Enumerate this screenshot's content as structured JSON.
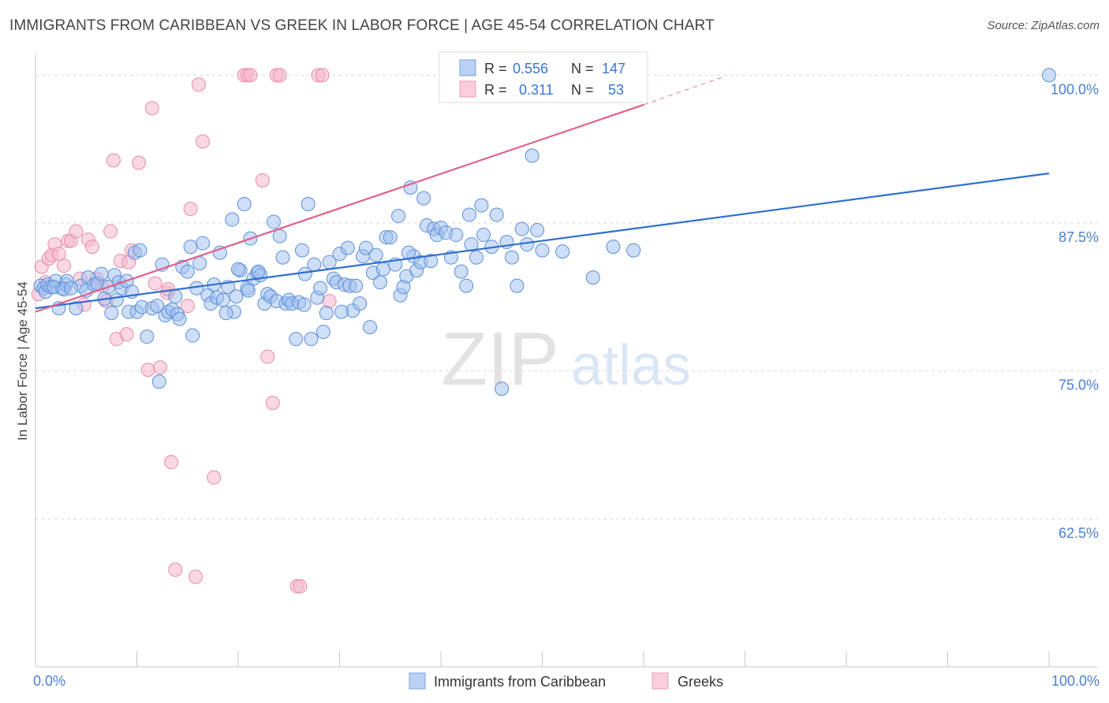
{
  "title": "IMMIGRANTS FROM CARIBBEAN VS GREEK IN LABOR FORCE | AGE 45-54 CORRELATION CHART",
  "source": "Source: ZipAtlas.com",
  "watermark": {
    "zip": "ZIP",
    "atlas": "atlas"
  },
  "colors": {
    "blue_fill": "#9dbdf0",
    "blue_stroke": "#5b8fd8",
    "blue_line": "#2f6fd0",
    "pink_fill": "#f6b8cc",
    "pink_stroke": "#e68aa8",
    "pink_line": "#e0608c",
    "axis_label": "#4a7fd4",
    "grid": "#d8d8d8"
  },
  "legend_top": {
    "rows": [
      {
        "r_label": "R =",
        "r_value": "0.556",
        "n_label": "N =",
        "n_value": "147"
      },
      {
        "r_label": "R =",
        "r_value": "0.311",
        "n_label": "N =",
        "n_value": "53"
      }
    ]
  },
  "legend_bottom": [
    "Immigrants from Caribbean",
    "Greeks"
  ],
  "chart_data": {
    "type": "scatter",
    "title": "IMMIGRANTS FROM CARIBBEAN VS GREEK IN LABOR FORCE | AGE 45-54 CORRELATION CHART",
    "xlabel": "",
    "ylabel": "In Labor Force | Age 45-54",
    "xlim": [
      0,
      100
    ],
    "ylim": [
      50,
      101.5
    ],
    "x_tick_labels": [
      "0.0%",
      "100.0%"
    ],
    "y_ticks": [
      62.5,
      75.0,
      87.5,
      100.0
    ],
    "y_tick_labels": [
      "62.5%",
      "75.0%",
      "87.5%",
      "100.0%"
    ],
    "grid": true,
    "legend_position": "top-center",
    "series": [
      {
        "name": "Immigrants from Caribbean",
        "color": "#9dbdf0",
        "trend": {
          "x0": 0,
          "y0": 80.3,
          "x1": 100,
          "y1": 91.7
        },
        "points": [
          [
            0.5,
            82.2
          ],
          [
            0.8,
            82.0
          ],
          [
            1.0,
            81.7
          ],
          [
            1.2,
            82.3
          ],
          [
            1.5,
            82.1
          ],
          [
            2.0,
            82.6
          ],
          [
            2.3,
            80.3
          ],
          [
            2.6,
            82.0
          ],
          [
            3.0,
            82.3
          ],
          [
            3.1,
            82.6
          ],
          [
            4.0,
            80.3
          ],
          [
            4.5,
            82.2
          ],
          [
            5.0,
            81.8
          ],
          [
            5.2,
            82.9
          ],
          [
            5.8,
            82.3
          ],
          [
            6.1,
            82.4
          ],
          [
            6.8,
            81.1
          ],
          [
            7.2,
            82.1
          ],
          [
            7.5,
            79.9
          ],
          [
            7.8,
            83.1
          ],
          [
            8.0,
            81.0
          ],
          [
            8.2,
            82.5
          ],
          [
            8.5,
            82.0
          ],
          [
            9.0,
            82.6
          ],
          [
            9.2,
            80.0
          ],
          [
            9.5,
            81.7
          ],
          [
            9.8,
            85.0
          ],
          [
            10.0,
            80.0
          ],
          [
            10.3,
            85.2
          ],
          [
            10.5,
            80.4
          ],
          [
            11.0,
            77.9
          ],
          [
            11.5,
            80.3
          ],
          [
            12.0,
            80.5
          ],
          [
            12.5,
            84.0
          ],
          [
            12.8,
            79.7
          ],
          [
            13.1,
            80.0
          ],
          [
            13.5,
            80.2
          ],
          [
            13.8,
            81.3
          ],
          [
            14.0,
            79.8
          ],
          [
            14.5,
            83.8
          ],
          [
            15.0,
            83.4
          ],
          [
            15.3,
            85.5
          ],
          [
            15.5,
            78.0
          ],
          [
            15.9,
            82.0
          ],
          [
            16.2,
            84.1
          ],
          [
            16.5,
            85.8
          ],
          [
            17.0,
            81.4
          ],
          [
            17.3,
            80.7
          ],
          [
            17.6,
            82.3
          ],
          [
            17.9,
            81.2
          ],
          [
            18.2,
            85.0
          ],
          [
            18.5,
            81.0
          ],
          [
            19.0,
            82.1
          ],
          [
            19.4,
            87.8
          ],
          [
            19.6,
            80.0
          ],
          [
            19.8,
            81.3
          ],
          [
            20.2,
            83.5
          ],
          [
            20.6,
            89.1
          ],
          [
            20.9,
            82.0
          ],
          [
            21.2,
            86.2
          ],
          [
            21.5,
            82.8
          ],
          [
            21.9,
            83.3
          ],
          [
            22.2,
            83.1
          ],
          [
            22.6,
            80.7
          ],
          [
            22.9,
            81.5
          ],
          [
            23.2,
            81.3
          ],
          [
            23.5,
            87.6
          ],
          [
            23.8,
            80.9
          ],
          [
            24.1,
            86.4
          ],
          [
            24.4,
            84.6
          ],
          [
            24.7,
            80.7
          ],
          [
            25.0,
            81.0
          ],
          [
            25.3,
            80.7
          ],
          [
            25.7,
            77.7
          ],
          [
            26.0,
            80.8
          ],
          [
            26.3,
            85.2
          ],
          [
            26.6,
            83.2
          ],
          [
            26.9,
            89.1
          ],
          [
            27.2,
            77.7
          ],
          [
            27.5,
            84.0
          ],
          [
            27.8,
            81.2
          ],
          [
            28.1,
            82.0
          ],
          [
            28.4,
            78.3
          ],
          [
            28.7,
            79.9
          ],
          [
            29.0,
            84.2
          ],
          [
            29.4,
            82.8
          ],
          [
            29.7,
            82.5
          ],
          [
            30.0,
            84.9
          ],
          [
            30.5,
            82.3
          ],
          [
            30.8,
            85.4
          ],
          [
            31.0,
            82.2
          ],
          [
            31.3,
            80.1
          ],
          [
            31.6,
            82.2
          ],
          [
            32.0,
            80.7
          ],
          [
            32.3,
            84.7
          ],
          [
            32.6,
            85.4
          ],
          [
            33.0,
            78.7
          ],
          [
            33.3,
            83.3
          ],
          [
            33.6,
            84.8
          ],
          [
            34.0,
            82.5
          ],
          [
            34.3,
            83.6
          ],
          [
            34.6,
            86.3
          ],
          [
            35.0,
            86.3
          ],
          [
            35.5,
            84.0
          ],
          [
            35.8,
            88.1
          ],
          [
            36.0,
            81.4
          ],
          [
            36.3,
            82.1
          ],
          [
            36.6,
            83.0
          ],
          [
            37.0,
            90.5
          ],
          [
            37.3,
            84.7
          ],
          [
            37.6,
            83.5
          ],
          [
            38.0,
            84.2
          ],
          [
            38.3,
            89.6
          ],
          [
            38.6,
            87.3
          ],
          [
            39.0,
            84.3
          ],
          [
            39.3,
            87.0
          ],
          [
            39.6,
            86.5
          ],
          [
            40.0,
            87.1
          ],
          [
            40.5,
            86.7
          ],
          [
            41.0,
            84.6
          ],
          [
            41.5,
            86.5
          ],
          [
            42.0,
            83.4
          ],
          [
            42.5,
            82.2
          ],
          [
            42.8,
            88.2
          ],
          [
            43.0,
            85.7
          ],
          [
            43.5,
            84.6
          ],
          [
            44.0,
            89.0
          ],
          [
            44.2,
            86.5
          ],
          [
            45.0,
            85.5
          ],
          [
            45.5,
            88.2
          ],
          [
            46.0,
            73.5
          ],
          [
            46.5,
            85.9
          ],
          [
            47.0,
            84.6
          ],
          [
            47.5,
            82.2
          ],
          [
            48.0,
            87.0
          ],
          [
            48.5,
            85.7
          ],
          [
            49.0,
            93.2
          ],
          [
            49.5,
            86.9
          ],
          [
            50.0,
            85.2
          ],
          [
            52.0,
            85.1
          ],
          [
            55.0,
            82.9
          ],
          [
            57.0,
            85.5
          ],
          [
            59.0,
            85.2
          ],
          [
            100.0,
            100.0
          ],
          [
            1.8,
            82.1
          ],
          [
            2.8,
            81.9
          ],
          [
            3.5,
            82.0
          ],
          [
            6.5,
            83.2
          ],
          [
            14.2,
            79.4
          ],
          [
            18.8,
            79.9
          ],
          [
            20.0,
            83.6
          ],
          [
            22.0,
            83.4
          ],
          [
            26.5,
            80.6
          ],
          [
            30.2,
            80.0
          ],
          [
            36.8,
            85.0
          ],
          [
            12.2,
            74.1
          ],
          [
            21.0,
            81.8
          ]
        ]
      },
      {
        "name": "Greeks",
        "color": "#f6b8cc",
        "trend": {
          "x0": 0,
          "y0": 80.0,
          "x1": 60,
          "y1": 97.5,
          "dash_x1": 68,
          "dash_y1": 99.9
        },
        "points": [
          [
            0.3,
            81.5
          ],
          [
            0.6,
            83.8
          ],
          [
            1.0,
            82.5
          ],
          [
            1.3,
            84.5
          ],
          [
            1.6,
            84.8
          ],
          [
            1.9,
            85.7
          ],
          [
            2.3,
            84.9
          ],
          [
            2.8,
            83.9
          ],
          [
            3.2,
            86.0
          ],
          [
            3.5,
            86.0
          ],
          [
            4.0,
            86.8
          ],
          [
            4.4,
            82.8
          ],
          [
            4.8,
            80.6
          ],
          [
            5.2,
            86.1
          ],
          [
            5.6,
            85.5
          ],
          [
            6.0,
            82.8
          ],
          [
            6.6,
            82.2
          ],
          [
            7.0,
            80.9
          ],
          [
            7.4,
            86.8
          ],
          [
            7.7,
            92.8
          ],
          [
            8.0,
            77.7
          ],
          [
            8.4,
            84.3
          ],
          [
            9.0,
            78.1
          ],
          [
            9.5,
            85.2
          ],
          [
            10.2,
            92.6
          ],
          [
            11.1,
            75.1
          ],
          [
            11.5,
            97.2
          ],
          [
            11.8,
            82.4
          ],
          [
            12.3,
            75.3
          ],
          [
            13.0,
            81.6
          ],
          [
            13.4,
            67.3
          ],
          [
            13.8,
            58.2
          ],
          [
            15.0,
            80.5
          ],
          [
            15.3,
            88.7
          ],
          [
            15.8,
            57.6
          ],
          [
            16.1,
            99.2
          ],
          [
            16.5,
            94.4
          ],
          [
            17.6,
            66.0
          ],
          [
            20.6,
            100.0
          ],
          [
            20.9,
            100.0
          ],
          [
            21.2,
            100.0
          ],
          [
            22.4,
            91.1
          ],
          [
            22.9,
            76.2
          ],
          [
            23.4,
            72.3
          ],
          [
            23.8,
            100.0
          ],
          [
            24.1,
            100.0
          ],
          [
            25.8,
            56.8
          ],
          [
            26.1,
            56.8
          ],
          [
            27.9,
            100.0
          ],
          [
            28.3,
            100.0
          ],
          [
            29.0,
            80.9
          ],
          [
            13.1,
            81.9
          ],
          [
            9.2,
            84.2
          ]
        ]
      }
    ]
  }
}
